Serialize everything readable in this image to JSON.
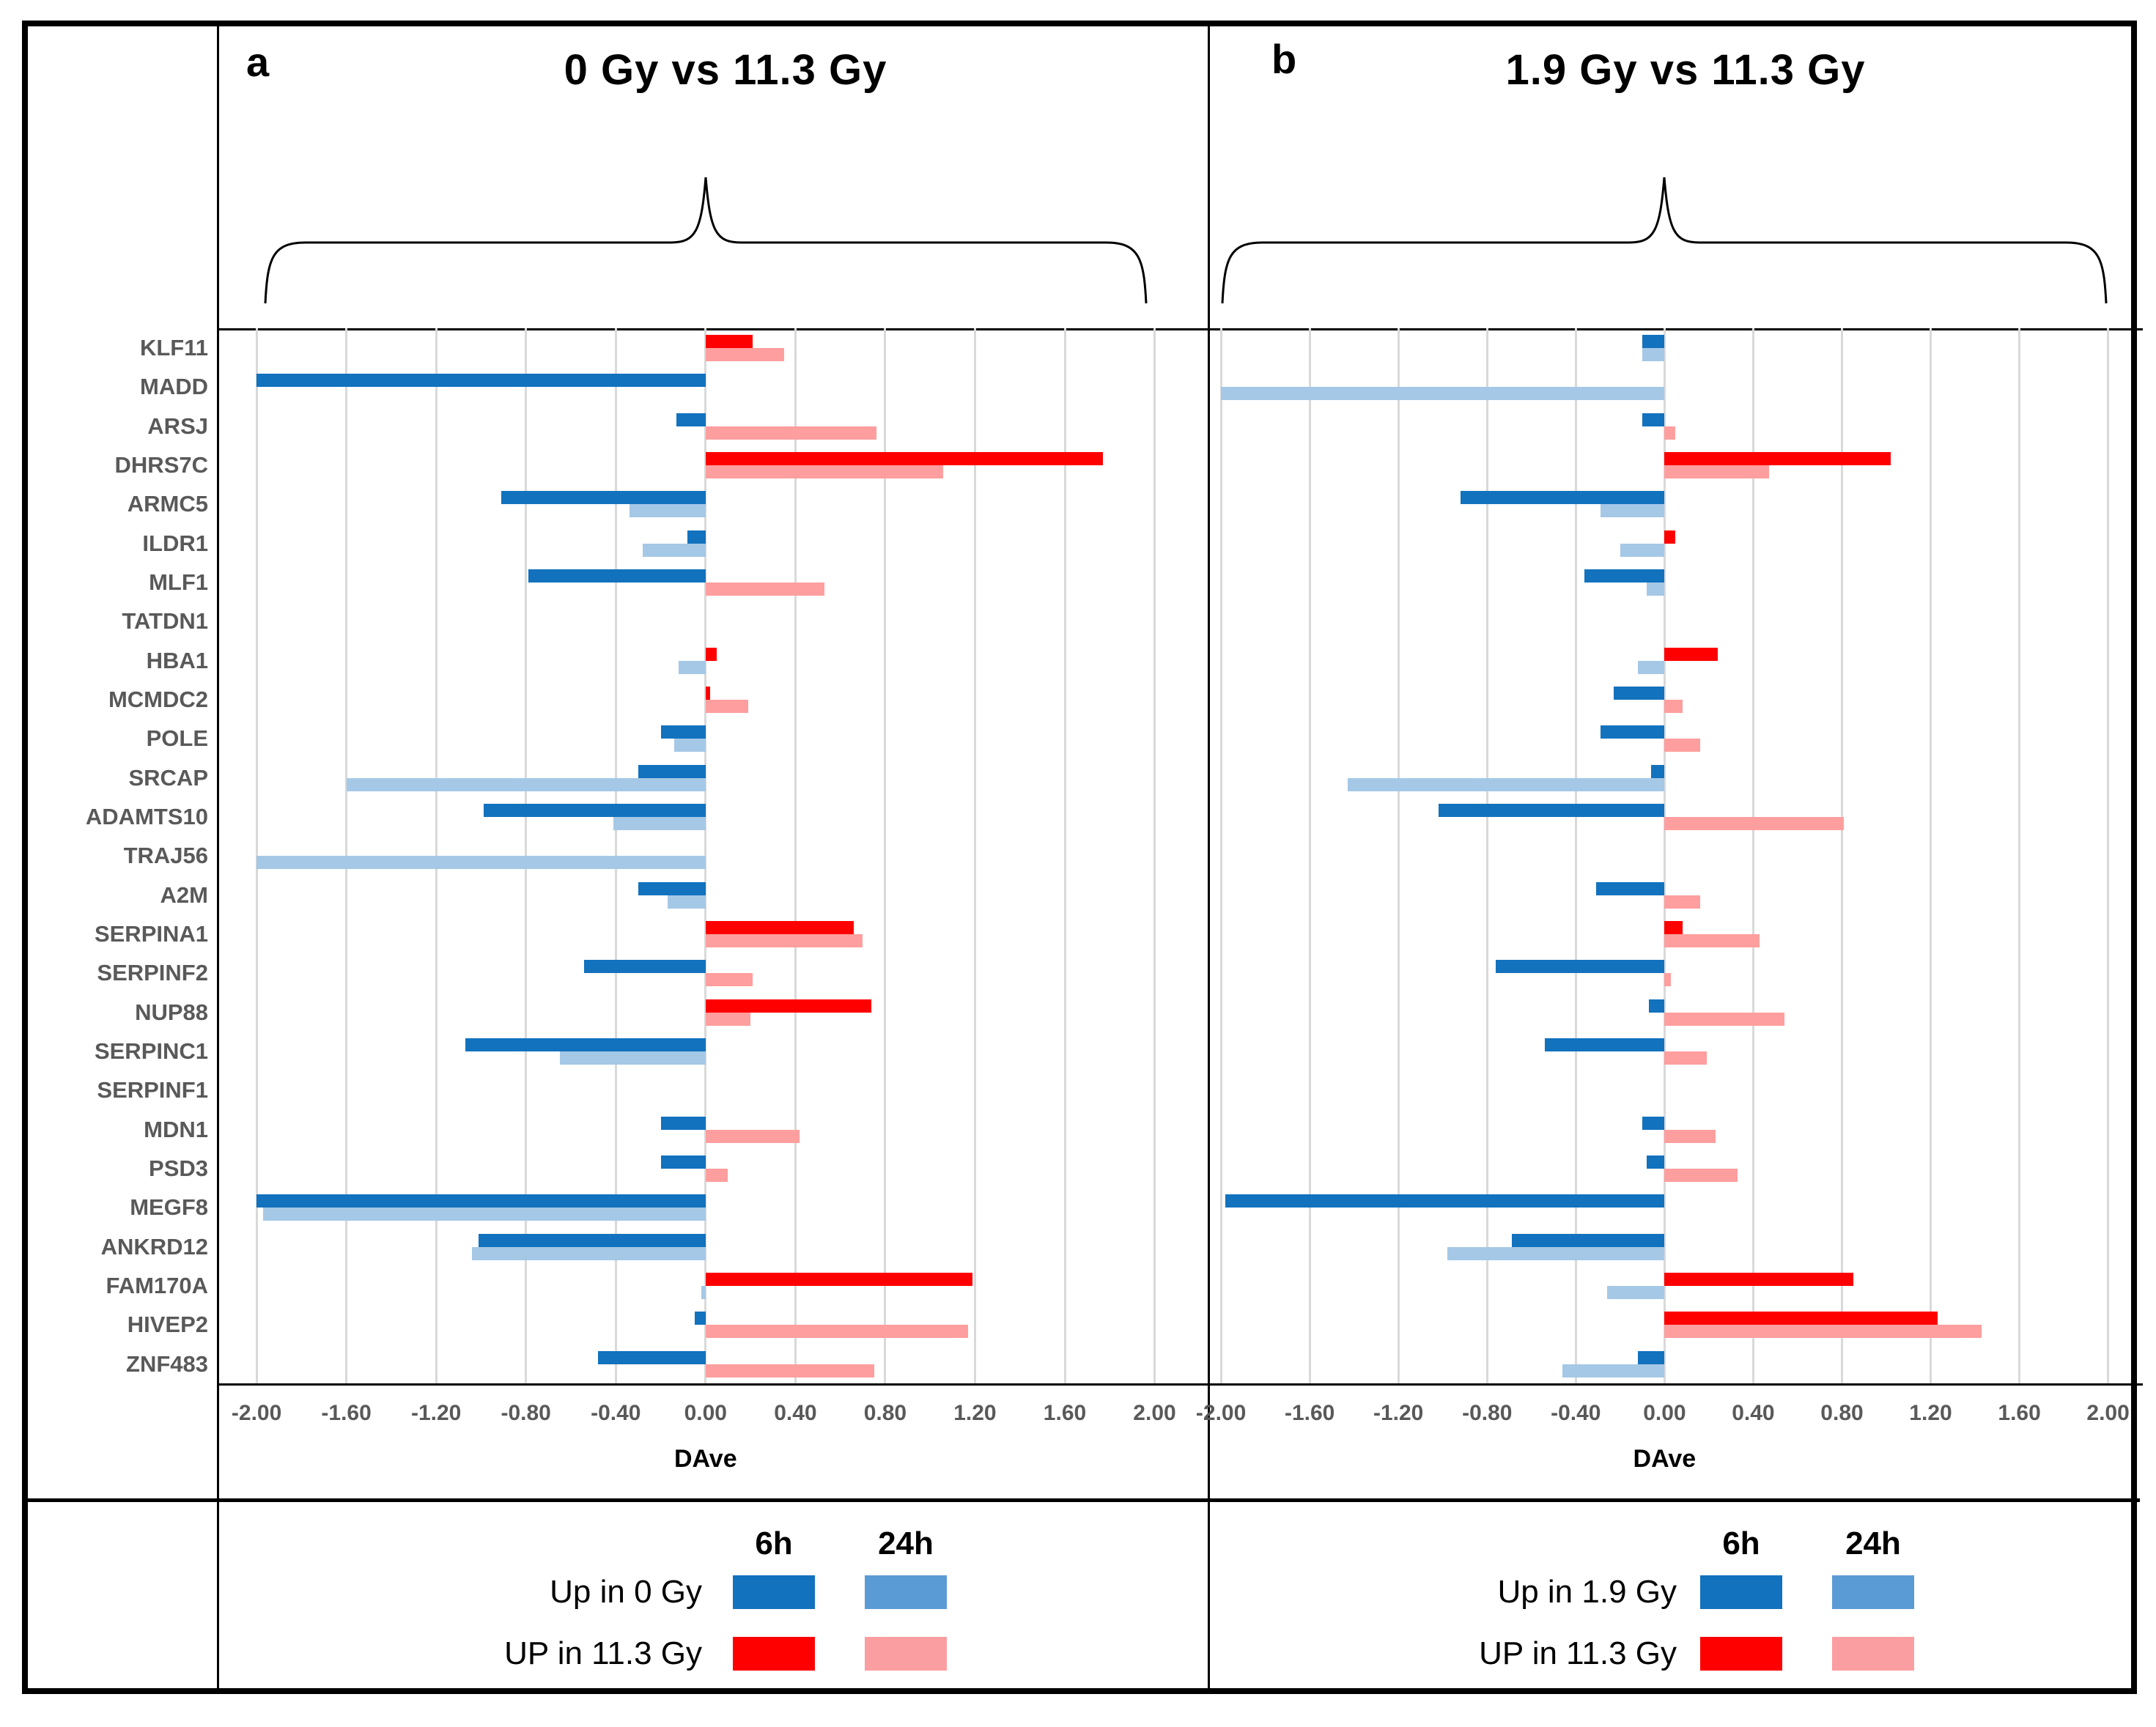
{
  "figure": {
    "xlabel": "DAve",
    "x_tick_labels": [
      "-2.00",
      "-1.60",
      "-1.20",
      "-0.80",
      "-0.40",
      "0.00",
      "0.40",
      "0.80",
      "1.20",
      "1.60",
      "2.00"
    ],
    "genes": [
      "KLF11",
      "MADD",
      "ARSJ",
      "DHRS7C",
      "ARMC5",
      "ILDR1",
      "MLF1",
      "TATDN1",
      "HBA1",
      "MCMDC2",
      "POLE",
      "SRCAP",
      "ADAMTS10",
      "TRAJ56",
      "A2M",
      "SERPINA1",
      "SERPINF2",
      "NUP88",
      "SERPINC1",
      "SERPINF1",
      "MDN1",
      "PSD3",
      "MEGF8",
      "ANKRD12",
      "FAM170A",
      "HIVEP2",
      "ZNF483"
    ]
  },
  "colors": {
    "bar_up_6h": "#FF0000",
    "bar_up_24h": "#FF9E9E",
    "bar_down_6h": "#1272BE",
    "bar_down_24h": "#A5C8E6",
    "legend_down_24h": "#5B9BD5",
    "legend_up_24h": "#FB9EA1",
    "grid": "#D9D9D9",
    "label_gray": "#595959"
  },
  "chart_data": [
    {
      "type": "bar",
      "orientation": "horizontal",
      "panel_label": "a",
      "title": "0 Gy vs 11.3 Gy",
      "xlabel": "DAve",
      "xlim": [
        -2.0,
        2.0
      ],
      "grid": true,
      "x_ticks": [
        -2.0,
        -1.6,
        -1.2,
        -0.8,
        -0.4,
        0.0,
        0.4,
        0.8,
        1.2,
        1.6,
        2.0
      ],
      "x_tick_labels": [
        "-2.00",
        "-1.60",
        "-1.20",
        "-0.80",
        "-0.40",
        "0.00",
        "0.40",
        "0.80",
        "1.20",
        "1.60",
        "2.00"
      ],
      "categories": [
        "KLF11",
        "MADD",
        "ARSJ",
        "DHRS7C",
        "ARMC5",
        "ILDR1",
        "MLF1",
        "TATDN1",
        "HBA1",
        "MCMDC2",
        "POLE",
        "SRCAP",
        "ADAMTS10",
        "TRAJ56",
        "A2M",
        "SERPINA1",
        "SERPINF2",
        "NUP88",
        "SERPINC1",
        "SERPINF1",
        "MDN1",
        "PSD3",
        "MEGF8",
        "ANKRD12",
        "FAM170A",
        "HIVEP2",
        "ZNF483"
      ],
      "series": [
        {
          "name": "6h",
          "values": [
            0.21,
            -2.0,
            -0.13,
            1.77,
            -0.91,
            -0.08,
            -0.79,
            0,
            0.05,
            0.02,
            -0.2,
            -0.3,
            -0.99,
            0,
            -0.3,
            0.66,
            -0.54,
            0.74,
            -1.07,
            0,
            -0.2,
            -0.2,
            -2.0,
            -1.01,
            1.19,
            -0.05,
            -0.48
          ]
        },
        {
          "name": "24h",
          "values": [
            0.35,
            0,
            0.76,
            1.06,
            -0.34,
            -0.28,
            0.53,
            0,
            -0.12,
            0.19,
            -0.14,
            -1.6,
            -0.41,
            -2.0,
            -0.17,
            0.7,
            0.21,
            0.2,
            -0.65,
            0,
            0.42,
            0.1,
            -1.97,
            -1.04,
            -0.02,
            1.17,
            0.75
          ]
        }
      ],
      "legend": {
        "time_headers": [
          "6h",
          "24h"
        ],
        "rows": [
          {
            "label": "Up in 0 Gy",
            "swatches": [
              "#1272BE",
              "#5B9BD5"
            ]
          },
          {
            "label": "UP in 11.3 Gy",
            "swatches": [
              "#FF0000",
              "#FB9EA1"
            ]
          }
        ]
      }
    },
    {
      "type": "bar",
      "orientation": "horizontal",
      "panel_label": "b",
      "title": "1.9 Gy vs 11.3 Gy",
      "xlabel": "DAve",
      "xlim": [
        -2.0,
        2.0
      ],
      "grid": true,
      "x_ticks": [
        -2.0,
        -1.6,
        -1.2,
        -0.8,
        -0.4,
        0.0,
        0.4,
        0.8,
        1.2,
        1.6,
        2.0
      ],
      "x_tick_labels": [
        "-2.00",
        "-1.60",
        "-1.20",
        "-0.80",
        "-0.40",
        "0.00",
        "0.40",
        "0.80",
        "1.20",
        "1.60",
        "2.00"
      ],
      "categories": [
        "KLF11",
        "MADD",
        "ARSJ",
        "DHRS7C",
        "ARMC5",
        "ILDR1",
        "MLF1",
        "TATDN1",
        "HBA1",
        "MCMDC2",
        "POLE",
        "SRCAP",
        "ADAMTS10",
        "TRAJ56",
        "A2M",
        "SERPINA1",
        "SERPINF2",
        "NUP88",
        "SERPINC1",
        "SERPINF1",
        "MDN1",
        "PSD3",
        "MEGF8",
        "ANKRD12",
        "FAM170A",
        "HIVEP2",
        "ZNF483"
      ],
      "series": [
        {
          "name": "6h",
          "values": [
            -0.1,
            0,
            -0.1,
            1.02,
            -0.92,
            0.05,
            -0.36,
            0,
            0.24,
            -0.23,
            -0.29,
            -0.06,
            -1.02,
            0,
            -0.31,
            0.08,
            -0.76,
            -0.07,
            -0.54,
            0,
            -0.1,
            -0.08,
            -1.98,
            -0.69,
            0.85,
            1.23,
            -0.12
          ]
        },
        {
          "name": "24h",
          "values": [
            -0.1,
            -2.0,
            0.05,
            0.47,
            -0.29,
            -0.2,
            -0.08,
            0,
            -0.12,
            0.08,
            0.16,
            -1.43,
            0.81,
            0,
            0.16,
            0.43,
            0.03,
            0.54,
            0.19,
            0,
            0.23,
            0.33,
            0,
            -0.98,
            -0.26,
            1.43,
            -0.46
          ]
        }
      ],
      "legend": {
        "time_headers": [
          "6h",
          "24h"
        ],
        "rows": [
          {
            "label": "Up in 1.9 Gy",
            "swatches": [
              "#1272BE",
              "#5B9BD5"
            ]
          },
          {
            "label": "UP in 11.3 Gy",
            "swatches": [
              "#FF0000",
              "#FB9EA1"
            ]
          }
        ]
      }
    }
  ]
}
